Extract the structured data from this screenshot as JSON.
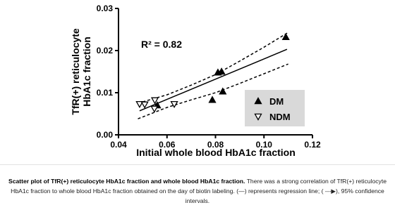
{
  "chart_data": {
    "type": "scatter",
    "x_label": "Initial whole blood HbA1c fraction",
    "y_label": [
      "TfR(+) reticulocyte",
      "HbA1c fraction"
    ],
    "annotation": "R² = 0.82",
    "xlim": [
      0.04,
      0.12
    ],
    "xticks": [
      0.04,
      0.06,
      0.08,
      {
        "value": 0.1,
        "label": "0.10"
      },
      0.12
    ],
    "ylim": [
      0,
      0.03
    ],
    "yticks": [
      {
        "value": 0,
        "label": "0.00"
      },
      0.01,
      0.02,
      0.03
    ],
    "legend": "right",
    "series": [
      {
        "name": "DM",
        "marker": "triangle-up",
        "filled": true,
        "color": "#000000",
        "x": [
          0.056,
          0.0787,
          0.081,
          0.0825,
          0.083,
          0.109
        ],
        "values": [
          0.007,
          0.0083,
          0.0148,
          0.015,
          0.0103,
          0.0232
        ]
      },
      {
        "name": "NDM",
        "marker": "triangle-down",
        "filled": false,
        "color": "#000000",
        "x": [
          0.0487,
          0.0508,
          0.0548,
          0.055,
          0.063
        ],
        "values": [
          0.0073,
          0.0072,
          0.0062,
          0.0082,
          0.0073
        ]
      }
    ],
    "regression": {
      "x": [
        0.0487,
        0.1095
      ],
      "values": [
        0.0057,
        0.0203
      ]
    },
    "ci_upper": {
      "x": [
        0.048,
        0.06,
        0.07,
        0.08,
        0.09,
        0.1,
        0.11
      ],
      "values": [
        0.0075,
        0.0095,
        0.0118,
        0.0143,
        0.0175,
        0.0208,
        0.0243
      ]
    },
    "ci_lower": {
      "x": [
        0.048,
        0.06,
        0.07,
        0.08,
        0.09,
        0.1,
        0.11
      ],
      "values": [
        0.0038,
        0.0065,
        0.0083,
        0.01,
        0.0122,
        0.0145,
        0.0168
      ]
    }
  },
  "caption": {
    "title": "Scatter plot of TfR(+) reticulocyte HbA1c fraction and whole blood HbA1c fraction.",
    "text": "There was a strong correlation of TfR(+) reticulocyte HbA1c fraction to whole blood HbA1c fraction obtained on the day of biotin labeling. (—) represents regression line; ( ---▶), 95% confidence intervals."
  }
}
